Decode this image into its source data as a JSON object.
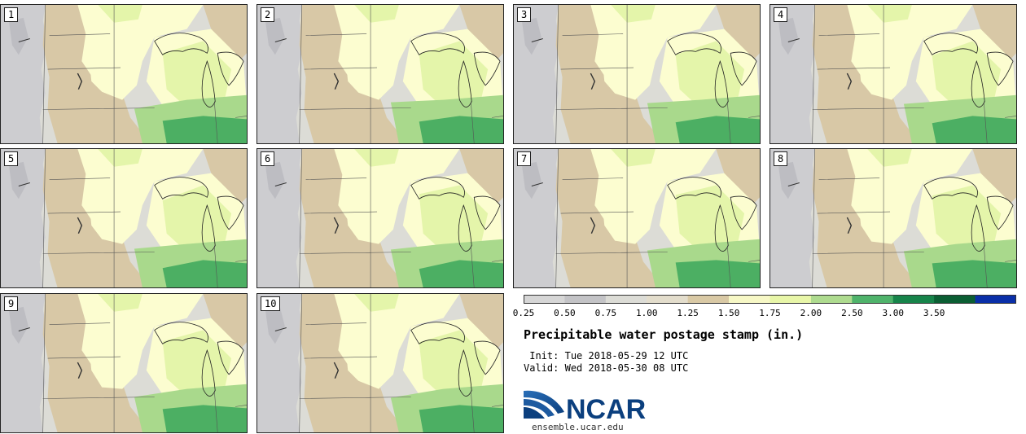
{
  "title": "Precipitable water postage stamp (in.)",
  "init_label": " Init:",
  "init_value": "Tue 2018-05-29 12 UTC",
  "valid_label": "Valid:",
  "valid_value": "Wed 2018-05-30 08 UTC",
  "logo_text": "NCAR",
  "site": "ensemble.ucar.edu",
  "members": [
    "1",
    "2",
    "3",
    "4",
    "5",
    "6",
    "7",
    "8",
    "9",
    "10"
  ],
  "colorbar": {
    "ticks": [
      "0.25",
      "0.50",
      "0.75",
      "1.00",
      "1.25",
      "1.50",
      "1.75",
      "2.00",
      "2.50",
      "3.00",
      "3.50"
    ],
    "colors": [
      "#d6d6d6",
      "#c3c3c6",
      "#dcdcd6",
      "#e3ddcc",
      "#d9c9a5",
      "#f7f8c6",
      "#e8f6a8",
      "#aedb8f",
      "#4fb36b",
      "#17844a",
      "#0b5e33",
      "#0a2fa8"
    ]
  },
  "map_colors": {
    "grey": "#cdcdd0",
    "light_grey": "#dcdcd6",
    "tan": "#d8c8a6",
    "cream": "#fcfdd0",
    "light_green": "#e4f5aa",
    "green": "#a9d98c",
    "dark_green": "#4caf63",
    "water": "#fcfdd0"
  }
}
